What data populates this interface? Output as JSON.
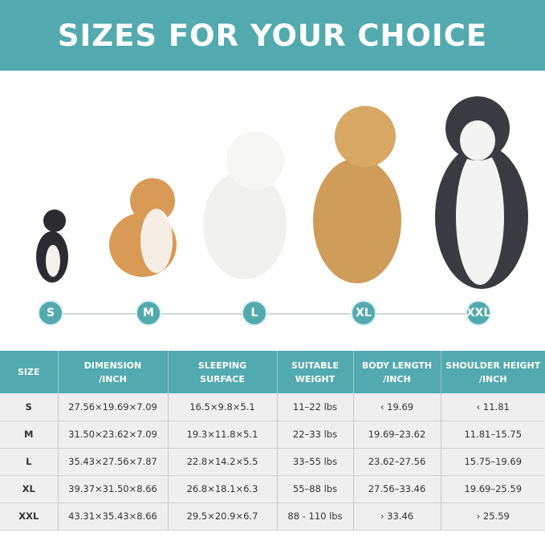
{
  "title": "SIZES FOR YOUR CHOICE",
  "sizes": [
    "S",
    "M",
    "L",
    "XL",
    "XXL"
  ],
  "colors": {
    "accent": "#52aaae"
  },
  "table": {
    "headers": [
      [
        "SIZE",
        ""
      ],
      [
        "DIMENSION",
        "/INCH"
      ],
      [
        "SLEEPING",
        "SURFACE"
      ],
      [
        "SUITABLE",
        "WEIGHT"
      ],
      [
        "BODY LENGTH",
        "/INCH"
      ],
      [
        "SHOULDER HEIGHT",
        "/INCH"
      ]
    ],
    "rows": [
      [
        "S",
        "27.56×19.69×7.09",
        "16.5×9.8×5.1",
        "11–22 lbs",
        "‹ 19.69",
        "‹ 11.81"
      ],
      [
        "M",
        "31.50×23.62×7.09",
        "19.3×11.8×5.1",
        "22–33 lbs",
        "19.69–23.62",
        "11.81–15.75"
      ],
      [
        "L",
        "35.43×27.56×7.87",
        "22.8×14.2×5.5",
        "33–55 lbs",
        "23.62–27.56",
        "15.75–19.69"
      ],
      [
        "XL",
        "39.37×31.50×8.66",
        "26.8×18.1×6.3",
        "55–88 lbs",
        "27.56–33.46",
        "19.69–25.59"
      ],
      [
        "XXL",
        "43.31×35.43×8.66",
        "29.5×20.9×6.7",
        "88 - 110 lbs",
        "› 33.46",
        "› 25.59"
      ]
    ]
  }
}
